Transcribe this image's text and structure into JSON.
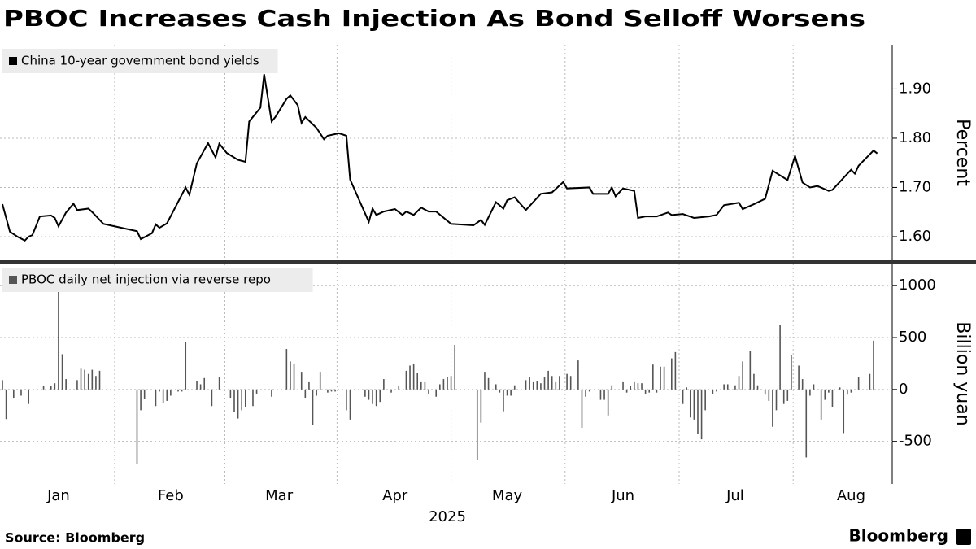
{
  "title": "PBOC Increases Cash Injection As Bond Selloff Worsens",
  "source": "Source: Bloomberg",
  "brand": "Bloomberg",
  "chart_data": [
    {
      "type": "line",
      "ylabel": "Percent",
      "xlim": [
        0,
        238
      ],
      "ylim": [
        1.552,
        1.99
      ],
      "yticks": [
        {
          "value": 1.6,
          "label": "1.60"
        },
        {
          "value": 1.7,
          "label": "1.70"
        },
        {
          "value": 1.8,
          "label": "1.80"
        },
        {
          "value": 1.9,
          "label": "1.90"
        }
      ],
      "grid": true,
      "x": [
        0,
        2,
        4,
        6,
        7,
        8,
        10,
        13,
        14,
        15,
        17,
        19,
        20,
        23,
        24,
        27,
        36,
        37,
        40,
        41,
        42,
        44,
        49,
        50,
        52,
        55,
        57,
        58,
        60,
        63,
        65,
        66,
        69,
        70,
        72,
        73,
        76,
        77,
        79,
        80,
        81,
        84,
        86,
        87,
        90,
        92,
        93,
        98,
        99,
        100,
        102,
        105,
        107,
        108,
        110,
        112,
        114,
        116,
        120,
        126,
        128,
        129,
        132,
        134,
        135,
        137,
        140,
        144,
        147,
        150,
        151,
        157,
        158,
        162,
        163,
        164,
        166,
        169,
        170,
        172,
        175,
        178,
        179,
        182,
        185,
        189,
        191,
        193,
        197,
        198,
        201,
        204,
        206,
        210,
        212,
        214,
        216,
        218,
        221,
        222,
        227,
        228,
        229,
        233,
        234
      ],
      "series": [
        {
          "name": "China 10-year government bond yields",
          "color": "#000000",
          "values": [
            1.666,
            1.61,
            1.6,
            1.592,
            1.6,
            1.603,
            1.641,
            1.643,
            1.638,
            1.621,
            1.649,
            1.667,
            1.654,
            1.657,
            1.65,
            1.626,
            1.611,
            1.595,
            1.607,
            1.625,
            1.618,
            1.627,
            1.7,
            1.685,
            1.749,
            1.79,
            1.761,
            1.789,
            1.77,
            1.756,
            1.752,
            1.834,
            1.862,
            1.93,
            1.834,
            1.843,
            1.88,
            1.887,
            1.867,
            1.831,
            1.843,
            1.821,
            1.798,
            1.805,
            1.81,
            1.805,
            1.716,
            1.63,
            1.657,
            1.644,
            1.651,
            1.656,
            1.644,
            1.651,
            1.644,
            1.659,
            1.651,
            1.651,
            1.626,
            1.623,
            1.634,
            1.624,
            1.67,
            1.657,
            1.674,
            1.68,
            1.654,
            1.687,
            1.69,
            1.711,
            1.698,
            1.7,
            1.687,
            1.687,
            1.7,
            1.682,
            1.698,
            1.693,
            1.638,
            1.641,
            1.641,
            1.649,
            1.644,
            1.646,
            1.638,
            1.641,
            1.644,
            1.664,
            1.669,
            1.656,
            1.666,
            1.677,
            1.734,
            1.715,
            1.764,
            1.71,
            1.7,
            1.703,
            1.693,
            1.695,
            1.736,
            1.728,
            1.744,
            1.775,
            1.769
          ]
        }
      ]
    },
    {
      "type": "bar",
      "ylabel": "Billion yuan",
      "xlabel": "2025",
      "xlim": [
        0,
        238
      ],
      "ylim": [
        -910,
        1213
      ],
      "yticks": [
        -500,
        0,
        500,
        1000
      ],
      "grid": true,
      "xticks": [
        {
          "value": 15,
          "label": "Jan"
        },
        {
          "value": 45,
          "label": "Feb"
        },
        {
          "value": 74,
          "label": "Mar"
        },
        {
          "value": 105,
          "label": "Apr"
        },
        {
          "value": 135,
          "label": "May"
        },
        {
          "value": 166,
          "label": "Jun"
        },
        {
          "value": 196,
          "label": "Jul"
        },
        {
          "value": 227,
          "label": "Aug"
        }
      ],
      "x": [
        0,
        1,
        3,
        5,
        7,
        11,
        13,
        14,
        15,
        16,
        17,
        20,
        21,
        22,
        23,
        24,
        25,
        26,
        36,
        37,
        38,
        41,
        42,
        43,
        44,
        45,
        47,
        48,
        49,
        52,
        53,
        54,
        56,
        58,
        61,
        62,
        63,
        64,
        65,
        67,
        68,
        72,
        76,
        77,
        78,
        80,
        81,
        82,
        83,
        84,
        85,
        87,
        88,
        89,
        92,
        93,
        97,
        98,
        99,
        100,
        101,
        102,
        104,
        106,
        108,
        109,
        110,
        111,
        112,
        113,
        114,
        116,
        117,
        118,
        119,
        120,
        121,
        127,
        128,
        129,
        130,
        132,
        133,
        134,
        135,
        136,
        137,
        140,
        141,
        142,
        143,
        144,
        145,
        146,
        147,
        148,
        149,
        151,
        152,
        154,
        155,
        156,
        157,
        160,
        161,
        162,
        163,
        166,
        167,
        168,
        169,
        170,
        171,
        172,
        173,
        174,
        175,
        176,
        177,
        179,
        180,
        182,
        183,
        184,
        185,
        186,
        187,
        188,
        190,
        191,
        193,
        194,
        196,
        197,
        198,
        200,
        201,
        202,
        204,
        205,
        206,
        207,
        208,
        209,
        210,
        211,
        213,
        214,
        215,
        216,
        217,
        219,
        220,
        221,
        222,
        224,
        225,
        226,
        227,
        229,
        232,
        233
      ],
      "series": [
        {
          "name": "PBOC daily net injection via reverse repo",
          "color": "#555555",
          "values": [
            90,
            -285,
            -80,
            -60,
            -140,
            30,
            30,
            60,
            960,
            340,
            100,
            90,
            200,
            190,
            150,
            190,
            130,
            180,
            -720,
            -200,
            -90,
            -160,
            -20,
            -130,
            -110,
            -60,
            -20,
            -20,
            460,
            80,
            50,
            110,
            -160,
            120,
            -80,
            -220,
            -280,
            -200,
            -170,
            -160,
            -40,
            -70,
            390,
            270,
            250,
            170,
            -80,
            70,
            -340,
            -60,
            170,
            -30,
            -20,
            -20,
            -200,
            -290,
            -70,
            -100,
            -140,
            -160,
            -120,
            100,
            -30,
            30,
            180,
            230,
            250,
            160,
            70,
            70,
            -40,
            -70,
            50,
            100,
            120,
            130,
            430,
            -680,
            -320,
            170,
            110,
            50,
            -30,
            -210,
            -60,
            -60,
            40,
            90,
            120,
            70,
            80,
            60,
            120,
            180,
            130,
            70,
            130,
            150,
            130,
            280,
            -370,
            -70,
            -20,
            -100,
            -100,
            -250,
            40,
            70,
            -30,
            30,
            70,
            60,
            60,
            -40,
            -30,
            240,
            -30,
            220,
            220,
            300,
            360,
            -140,
            20,
            -270,
            -290,
            -430,
            -480,
            -200,
            -40,
            -20,
            50,
            50,
            40,
            130,
            270,
            370,
            150,
            40,
            -50,
            -110,
            -360,
            -200,
            620,
            -140,
            -110,
            330,
            230,
            100,
            -655,
            -60,
            50,
            -290,
            -100,
            -30,
            -170,
            20,
            -420,
            -50,
            -30,
            120,
            150,
            470
          ]
        }
      ]
    }
  ]
}
